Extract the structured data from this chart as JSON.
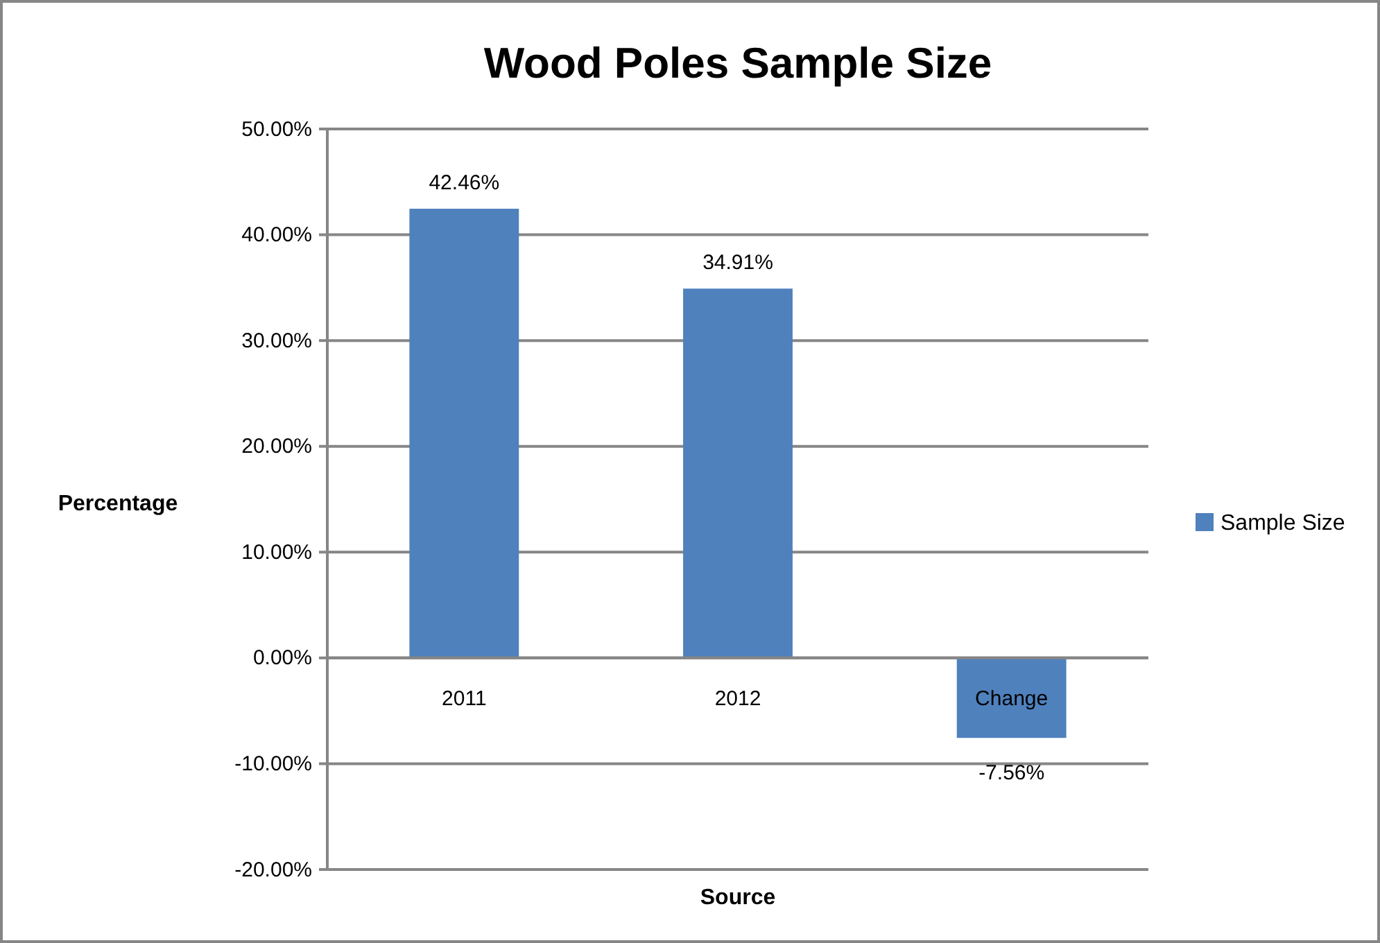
{
  "chart_data": {
    "type": "bar",
    "title": "Wood Poles Sample Size",
    "xlabel": "Source",
    "ylabel": "Percentage",
    "categories": [
      "2011",
      "2012",
      "Change"
    ],
    "series": [
      {
        "name": "Sample Size",
        "color": "#4f81bd",
        "values": [
          42.46,
          34.91,
          -7.56
        ],
        "value_labels": [
          "42.46%",
          "34.91%",
          "-7.56%"
        ]
      }
    ],
    "ylim": [
      -20,
      50
    ],
    "yticks": [
      {
        "value": -20,
        "label": "-20.00%"
      },
      {
        "value": -10,
        "label": "-10.00%"
      },
      {
        "value": 0,
        "label": "0.00%"
      },
      {
        "value": 10,
        "label": "10.00%"
      },
      {
        "value": 20,
        "label": "20.00%"
      },
      {
        "value": 30,
        "label": "30.00%"
      },
      {
        "value": 40,
        "label": "40.00%"
      },
      {
        "value": 50,
        "label": "50.00%"
      }
    ],
    "grid": "y",
    "legend": "right"
  }
}
